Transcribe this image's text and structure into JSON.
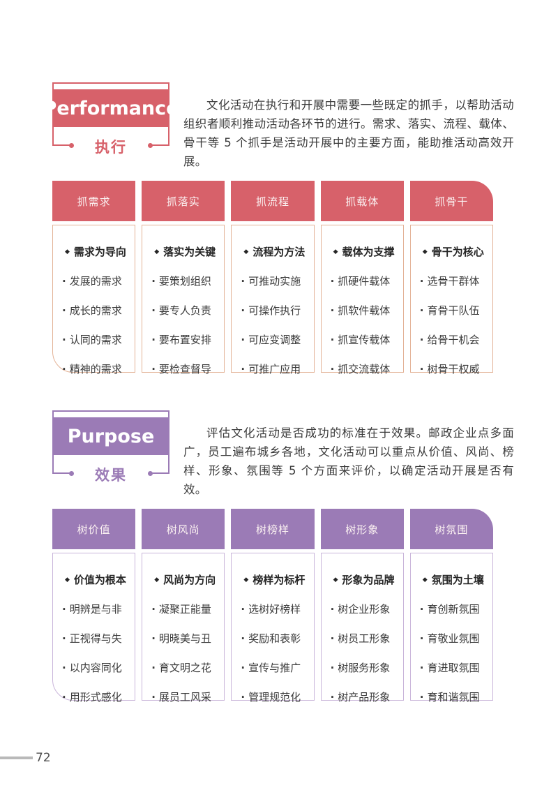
{
  "page": {
    "number": "72"
  },
  "bullets": {
    "title_bullet": "◆",
    "item_bullet": "·"
  },
  "sections": [
    {
      "id": "performance",
      "title_en": "Performance",
      "title_zh": "执行",
      "accent": "#d7616a",
      "body_border": "#e3b296",
      "intro": "文化活动在执行和开展中需要一些既定的抓手，以帮助活动组织者顺利推动活动各环节的进行。需求、落实、流程、载体、骨干等 5 个抓手是活动开展中的主要方面，能助推活动高效开展。",
      "cards": [
        {
          "header": "抓需求",
          "title": "需求为导向",
          "items": [
            "发展的需求",
            "成长的需求",
            "认同的需求",
            "精神的需求"
          ]
        },
        {
          "header": "抓落实",
          "title": "落实为关键",
          "items": [
            "要策划组织",
            "要专人负责",
            "要布置安排",
            "要检查督导"
          ]
        },
        {
          "header": "抓流程",
          "title": "流程为方法",
          "items": [
            "可推动实施",
            "可操作执行",
            "可应变调整",
            "可推广应用"
          ]
        },
        {
          "header": "抓载体",
          "title": "载体为支撑",
          "items": [
            "抓硬件载体",
            "抓软件载体",
            "抓宣传载体",
            "抓交流载体"
          ]
        },
        {
          "header": "抓骨干",
          "title": "骨干为核心",
          "items": [
            "选骨干群体",
            "育骨干队伍",
            "给骨干机会",
            "树骨干权威"
          ]
        }
      ]
    },
    {
      "id": "purpose",
      "title_en": "Purpose",
      "title_zh": "效果",
      "accent": "#9b7bb6",
      "body_border": "#c9b5da",
      "intro": "评估文化活动是否成功的标准在于效果。邮政企业点多面广，员工遍布城乡各地，文化活动可以重点从价值、风尚、榜样、形象、氛围等 5 个方面来评价，以确定活动开展是否有效。",
      "cards": [
        {
          "header": "树价值",
          "title": "价值为根本",
          "items": [
            "明辨是与非",
            "正视得与失",
            "以内容同化",
            "用形式感化"
          ]
        },
        {
          "header": "树风尚",
          "title": "风尚为方向",
          "items": [
            "凝聚正能量",
            "明晓美与丑",
            "育文明之花",
            "展员工风采"
          ]
        },
        {
          "header": "树榜样",
          "title": "榜样为标杆",
          "items": [
            "选树好榜样",
            "奖励和表彰",
            "宣传与推广",
            "管理规范化"
          ]
        },
        {
          "header": "树形象",
          "title": "形象为品牌",
          "items": [
            "树企业形象",
            "树员工形象",
            "树服务形象",
            "树产品形象"
          ]
        },
        {
          "header": "树氛围",
          "title": "氛围为土壤",
          "items": [
            "育创新氛围",
            "育敬业氛围",
            "育进取氛围",
            "育和谐氛围"
          ]
        }
      ]
    }
  ]
}
